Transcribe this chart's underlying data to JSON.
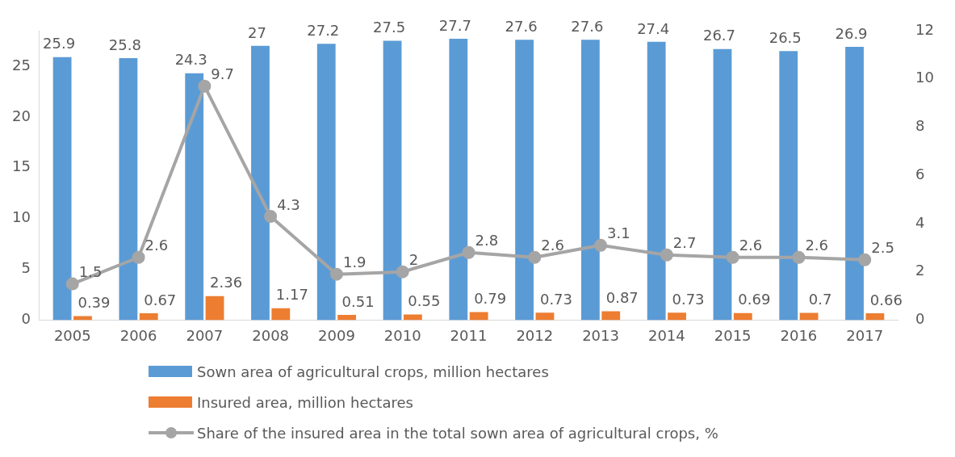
{
  "chart_data": {
    "type": "bar",
    "categories": [
      "2005",
      "2006",
      "2007",
      "2008",
      "2009",
      "2010",
      "2011",
      "2012",
      "2013",
      "2014",
      "2015",
      "2016",
      "2017"
    ],
    "series": [
      {
        "name": "Sown area of agricultural crops, million hectares",
        "color": "#5b9bd5",
        "values": [
          25.9,
          25.8,
          24.3,
          27,
          27.2,
          27.5,
          27.7,
          27.6,
          27.6,
          27.4,
          26.7,
          26.5,
          26.9
        ]
      },
      {
        "name": "Insured area, million hectares",
        "color": "#ed7d31",
        "values": [
          0.39,
          0.67,
          2.36,
          1.17,
          0.51,
          0.55,
          0.79,
          0.73,
          0.87,
          0.73,
          0.69,
          0.7,
          0.66
        ]
      },
      {
        "name": "Share of the insured area in the total sown area of agricultural crops, %",
        "color": "#a5a5a5",
        "type": "line",
        "axis": "y2",
        "marker": "circle",
        "values": [
          1.5,
          2.6,
          9.7,
          4.3,
          1.9,
          2,
          2.8,
          2.6,
          3.1,
          2.7,
          2.6,
          2.6,
          2.5
        ]
      }
    ],
    "ylim": [
      0,
      28.5
    ],
    "yticks": [
      0,
      5,
      10,
      15,
      20,
      25
    ],
    "y2lim": [
      0,
      12
    ],
    "y2ticks": [
      0,
      2,
      4,
      6,
      8,
      10,
      12
    ],
    "grid": false,
    "legend": "bottom",
    "data_labels": true
  }
}
